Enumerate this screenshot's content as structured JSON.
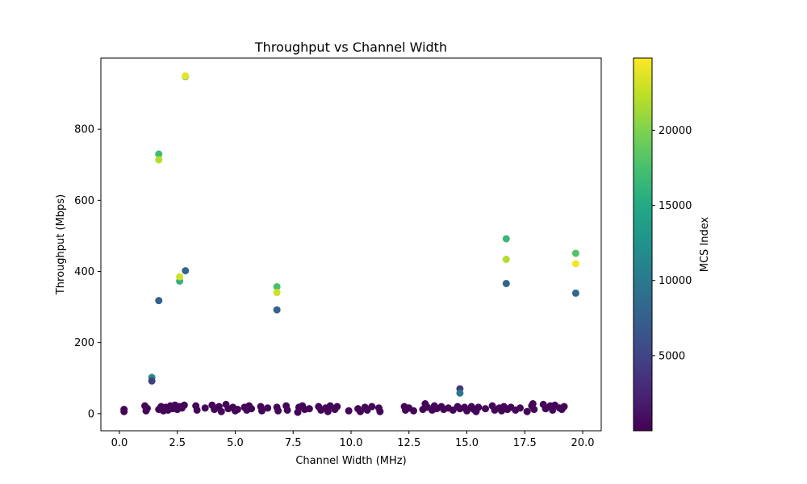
{
  "chart_data": {
    "type": "scatter",
    "title": "Throughput vs Channel Width",
    "xlabel": "Channel Width (MHz)",
    "ylabel": "Throughput (Mbps)",
    "xlim": [
      -0.8,
      20.8
    ],
    "ylim": [
      -48,
      1000
    ],
    "xticks": [
      0.0,
      2.5,
      5.0,
      7.5,
      10.0,
      12.5,
      15.0,
      17.5,
      20.0
    ],
    "xtick_labels": [
      "0.0",
      "2.5",
      "5.0",
      "7.5",
      "10.0",
      "12.5",
      "15.0",
      "17.5",
      "20.0"
    ],
    "yticks": [
      0,
      200,
      400,
      600,
      800
    ],
    "ytick_labels": [
      "0",
      "200",
      "400",
      "600",
      "800"
    ],
    "grid": false,
    "colorbar": {
      "label": "MCS Index",
      "colormap": "viridis",
      "range": [
        0,
        24800
      ],
      "ticks": [
        5000,
        10000,
        15000,
        20000
      ],
      "tick_labels": [
        "5000",
        "10000",
        "15000",
        "20000"
      ]
    },
    "points": [
      {
        "x": 2.85,
        "y": 948,
        "c": 19000
      },
      {
        "x": 2.85,
        "y": 950,
        "c": 24000
      },
      {
        "x": 1.7,
        "y": 730,
        "c": 17000
      },
      {
        "x": 1.7,
        "y": 714,
        "c": 22000
      },
      {
        "x": 2.85,
        "y": 402,
        "c": 8000
      },
      {
        "x": 2.6,
        "y": 373,
        "c": 16000
      },
      {
        "x": 2.6,
        "y": 385,
        "c": 23000
      },
      {
        "x": 1.7,
        "y": 318,
        "c": 7500
      },
      {
        "x": 1.4,
        "y": 102,
        "c": 12000
      },
      {
        "x": 1.4,
        "y": 92,
        "c": 4500
      },
      {
        "x": 6.8,
        "y": 357,
        "c": 17500
      },
      {
        "x": 6.8,
        "y": 341,
        "c": 23000
      },
      {
        "x": 6.8,
        "y": 292,
        "c": 8000
      },
      {
        "x": 14.7,
        "y": 70,
        "c": 4000
      },
      {
        "x": 14.7,
        "y": 58,
        "c": 10000
      },
      {
        "x": 16.7,
        "y": 492,
        "c": 16500
      },
      {
        "x": 16.7,
        "y": 434,
        "c": 22000
      },
      {
        "x": 16.7,
        "y": 366,
        "c": 8000
      },
      {
        "x": 19.7,
        "y": 451,
        "c": 18000
      },
      {
        "x": 19.7,
        "y": 422,
        "c": 24500
      },
      {
        "x": 19.7,
        "y": 339,
        "c": 8500
      },
      {
        "x": 0.2,
        "y": 12,
        "c": 300
      },
      {
        "x": 0.2,
        "y": 6,
        "c": 300
      },
      {
        "x": 1.1,
        "y": 22,
        "c": 300
      },
      {
        "x": 1.15,
        "y": 8,
        "c": 300
      },
      {
        "x": 1.2,
        "y": 15,
        "c": 300
      },
      {
        "x": 1.7,
        "y": 12,
        "c": 300
      },
      {
        "x": 1.8,
        "y": 20,
        "c": 300
      },
      {
        "x": 1.9,
        "y": 8,
        "c": 300
      },
      {
        "x": 2.0,
        "y": 18,
        "c": 300
      },
      {
        "x": 2.1,
        "y": 10,
        "c": 300
      },
      {
        "x": 2.2,
        "y": 22,
        "c": 300
      },
      {
        "x": 2.3,
        "y": 14,
        "c": 300
      },
      {
        "x": 2.4,
        "y": 24,
        "c": 300
      },
      {
        "x": 2.5,
        "y": 12,
        "c": 300
      },
      {
        "x": 2.6,
        "y": 20,
        "c": 300
      },
      {
        "x": 2.7,
        "y": 16,
        "c": 300
      },
      {
        "x": 2.8,
        "y": 24,
        "c": 300
      },
      {
        "x": 3.3,
        "y": 22,
        "c": 300
      },
      {
        "x": 3.35,
        "y": 10,
        "c": 300
      },
      {
        "x": 3.7,
        "y": 16,
        "c": 300
      },
      {
        "x": 4.0,
        "y": 24,
        "c": 300
      },
      {
        "x": 4.1,
        "y": 12,
        "c": 300
      },
      {
        "x": 4.3,
        "y": 20,
        "c": 300
      },
      {
        "x": 4.4,
        "y": 6,
        "c": 300
      },
      {
        "x": 4.6,
        "y": 26,
        "c": 300
      },
      {
        "x": 4.7,
        "y": 14,
        "c": 300
      },
      {
        "x": 4.9,
        "y": 18,
        "c": 300
      },
      {
        "x": 5.0,
        "y": 8,
        "c": 300
      },
      {
        "x": 5.1,
        "y": 12,
        "c": 300
      },
      {
        "x": 5.4,
        "y": 18,
        "c": 300
      },
      {
        "x": 5.5,
        "y": 10,
        "c": 300
      },
      {
        "x": 5.6,
        "y": 22,
        "c": 300
      },
      {
        "x": 5.7,
        "y": 14,
        "c": 300
      },
      {
        "x": 6.1,
        "y": 20,
        "c": 300
      },
      {
        "x": 6.15,
        "y": 8,
        "c": 300
      },
      {
        "x": 6.4,
        "y": 16,
        "c": 300
      },
      {
        "x": 6.8,
        "y": 18,
        "c": 300
      },
      {
        "x": 6.85,
        "y": 8,
        "c": 300
      },
      {
        "x": 7.2,
        "y": 22,
        "c": 300
      },
      {
        "x": 7.25,
        "y": 10,
        "c": 300
      },
      {
        "x": 7.7,
        "y": 4,
        "c": 300
      },
      {
        "x": 7.75,
        "y": 18,
        "c": 300
      },
      {
        "x": 7.9,
        "y": 22,
        "c": 300
      },
      {
        "x": 8.0,
        "y": 12,
        "c": 300
      },
      {
        "x": 8.2,
        "y": 14,
        "c": 300
      },
      {
        "x": 8.6,
        "y": 20,
        "c": 300
      },
      {
        "x": 8.7,
        "y": 10,
        "c": 300
      },
      {
        "x": 8.9,
        "y": 16,
        "c": 300
      },
      {
        "x": 9.0,
        "y": 6,
        "c": 300
      },
      {
        "x": 9.1,
        "y": 22,
        "c": 300
      },
      {
        "x": 9.3,
        "y": 12,
        "c": 300
      },
      {
        "x": 9.4,
        "y": 20,
        "c": 300
      },
      {
        "x": 9.9,
        "y": 8,
        "c": 300
      },
      {
        "x": 10.3,
        "y": 14,
        "c": 300
      },
      {
        "x": 10.4,
        "y": 6,
        "c": 300
      },
      {
        "x": 10.6,
        "y": 18,
        "c": 300
      },
      {
        "x": 10.7,
        "y": 10,
        "c": 300
      },
      {
        "x": 10.9,
        "y": 20,
        "c": 300
      },
      {
        "x": 11.2,
        "y": 16,
        "c": 300
      },
      {
        "x": 11.25,
        "y": 6,
        "c": 300
      },
      {
        "x": 12.3,
        "y": 20,
        "c": 300
      },
      {
        "x": 12.35,
        "y": 10,
        "c": 300
      },
      {
        "x": 12.5,
        "y": 16,
        "c": 300
      },
      {
        "x": 12.7,
        "y": 8,
        "c": 300
      },
      {
        "x": 13.1,
        "y": 12,
        "c": 300
      },
      {
        "x": 13.2,
        "y": 28,
        "c": 300
      },
      {
        "x": 13.3,
        "y": 18,
        "c": 300
      },
      {
        "x": 13.5,
        "y": 10,
        "c": 300
      },
      {
        "x": 13.6,
        "y": 22,
        "c": 300
      },
      {
        "x": 13.7,
        "y": 14,
        "c": 300
      },
      {
        "x": 13.9,
        "y": 20,
        "c": 300
      },
      {
        "x": 14.0,
        "y": 12,
        "c": 300
      },
      {
        "x": 14.2,
        "y": 16,
        "c": 300
      },
      {
        "x": 14.4,
        "y": 10,
        "c": 300
      },
      {
        "x": 14.6,
        "y": 20,
        "c": 300
      },
      {
        "x": 14.7,
        "y": 14,
        "c": 300
      },
      {
        "x": 14.9,
        "y": 18,
        "c": 300
      },
      {
        "x": 15.0,
        "y": 8,
        "c": 300
      },
      {
        "x": 15.2,
        "y": 20,
        "c": 300
      },
      {
        "x": 15.3,
        "y": 12,
        "c": 300
      },
      {
        "x": 15.4,
        "y": 6,
        "c": 300
      },
      {
        "x": 15.5,
        "y": 18,
        "c": 300
      },
      {
        "x": 15.8,
        "y": 14,
        "c": 300
      },
      {
        "x": 16.1,
        "y": 22,
        "c": 300
      },
      {
        "x": 16.2,
        "y": 10,
        "c": 300
      },
      {
        "x": 16.4,
        "y": 16,
        "c": 300
      },
      {
        "x": 16.5,
        "y": 8,
        "c": 300
      },
      {
        "x": 16.6,
        "y": 20,
        "c": 300
      },
      {
        "x": 16.75,
        "y": 12,
        "c": 300
      },
      {
        "x": 16.9,
        "y": 18,
        "c": 300
      },
      {
        "x": 17.1,
        "y": 10,
        "c": 300
      },
      {
        "x": 17.3,
        "y": 16,
        "c": 300
      },
      {
        "x": 17.6,
        "y": 6,
        "c": 300
      },
      {
        "x": 17.8,
        "y": 22,
        "c": 300
      },
      {
        "x": 17.85,
        "y": 28,
        "c": 300
      },
      {
        "x": 17.9,
        "y": 12,
        "c": 300
      },
      {
        "x": 18.3,
        "y": 26,
        "c": 300
      },
      {
        "x": 18.4,
        "y": 14,
        "c": 300
      },
      {
        "x": 18.6,
        "y": 22,
        "c": 300
      },
      {
        "x": 18.7,
        "y": 10,
        "c": 300
      },
      {
        "x": 18.8,
        "y": 24,
        "c": 300
      },
      {
        "x": 19.0,
        "y": 16,
        "c": 300
      },
      {
        "x": 19.1,
        "y": 12,
        "c": 300
      },
      {
        "x": 19.2,
        "y": 20,
        "c": 300
      }
    ]
  }
}
